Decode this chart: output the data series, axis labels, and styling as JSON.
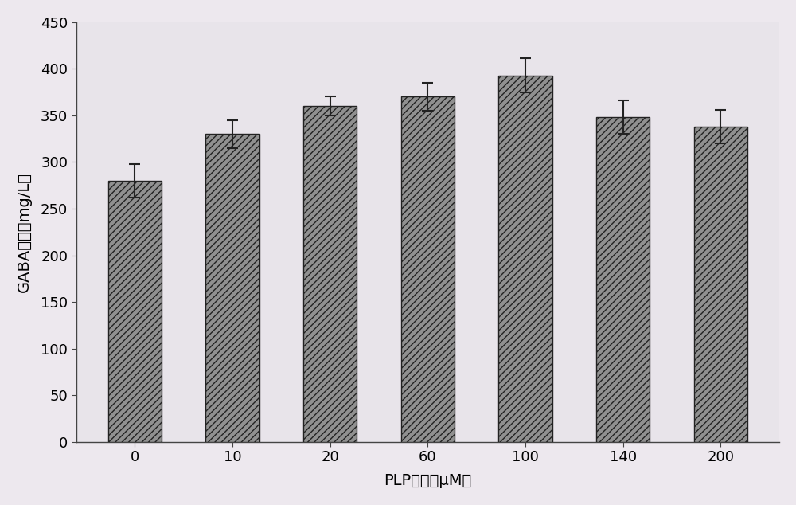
{
  "categories": [
    "0",
    "10",
    "20",
    "60",
    "100",
    "140",
    "200"
  ],
  "values": [
    280,
    330,
    360,
    370,
    393,
    348,
    338
  ],
  "errors": [
    18,
    15,
    10,
    15,
    18,
    18,
    18
  ],
  "bar_color": "#8c8c8c",
  "bar_edge_color": "#222222",
  "bar_width": 0.55,
  "xlabel": "PLP浓度（μM）",
  "ylabel": "GABA产量（mg/L）",
  "ylim": [
    0,
    450
  ],
  "yticks": [
    0,
    50,
    100,
    150,
    200,
    250,
    300,
    350,
    400,
    450
  ],
  "xlabel_fontsize": 14,
  "ylabel_fontsize": 14,
  "tick_fontsize": 13,
  "background_color": "#ede8ee",
  "plot_bg_color": "#e8e4ea",
  "error_capsize": 5,
  "error_linewidth": 1.5,
  "error_color": "#222222"
}
